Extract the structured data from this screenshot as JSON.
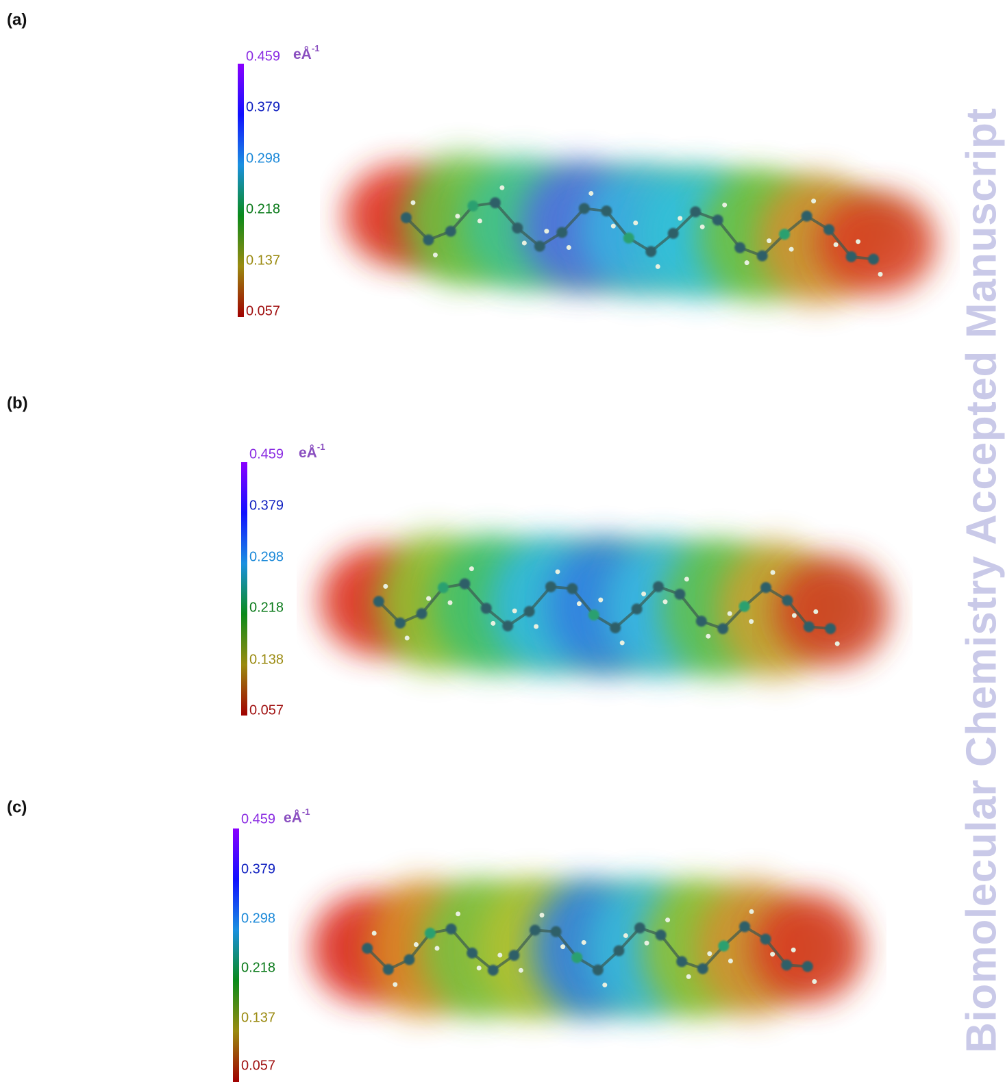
{
  "watermark": "Biomolecular Chemistry Accepted Manuscript",
  "panels": [
    {
      "label": "(a)",
      "scale": {
        "unit": "eÅ",
        "unit_exponent": "-1",
        "ticks": [
          "0.459",
          "0.379",
          "0.298",
          "0.218",
          "0.137",
          "0.057"
        ]
      }
    },
    {
      "label": "(b)",
      "scale": {
        "unit": "eÅ",
        "unit_exponent": "-1",
        "ticks": [
          "0.459",
          "0.379",
          "0.298",
          "0.218",
          "0.138",
          "0.057"
        ]
      }
    },
    {
      "label": "(c)",
      "scale": {
        "unit": "eÅ",
        "unit_exponent": "-1",
        "ticks": [
          "0.459",
          "0.379",
          "0.298",
          "0.218",
          "0.137",
          "0.057"
        ]
      }
    }
  ]
}
